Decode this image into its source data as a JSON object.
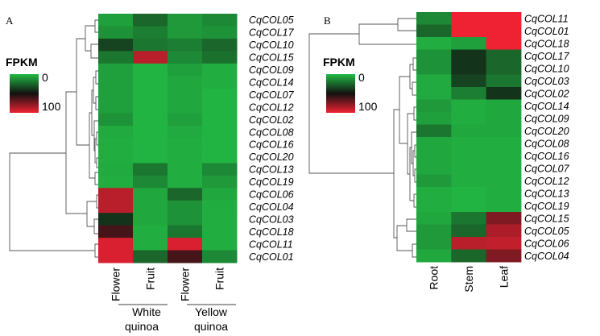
{
  "chart_data": [
    {
      "type": "heatmap",
      "panel_label": "A",
      "legend": {
        "title": "FPKM",
        "ticks": [
          "0",
          "100"
        ],
        "colors": [
          "#22bb44",
          "#111111",
          "#ee2233"
        ],
        "range": [
          0,
          100
        ]
      },
      "columns": [
        "Flower",
        "Fruit",
        "Flower",
        "Fruit"
      ],
      "column_groups": [
        {
          "name_line1": "White",
          "name_line2": "quinoa",
          "columns": [
            "Flower",
            "Fruit"
          ]
        },
        {
          "name_line1": "Yellow",
          "name_line2": "quinoa",
          "columns": [
            "Flower",
            "Fruit"
          ]
        }
      ],
      "rows": [
        "CqCOL05",
        "CqCOL17",
        "CqCOL10",
        "CqCOL15",
        "CqCOL09",
        "CqCOL14",
        "CqCOL07",
        "CqCOL12",
        "CqCOL02",
        "CqCOL08",
        "CqCOL16",
        "CqCOL20",
        "CqCOL13",
        "CqCOL19",
        "CqCOL06",
        "CqCOL04",
        "CqCOL03",
        "CqCOL18",
        "CqCOL11",
        "CqCOL01"
      ],
      "values": [
        [
          8,
          25,
          10,
          15
        ],
        [
          12,
          18,
          10,
          12
        ],
        [
          35,
          20,
          18,
          25
        ],
        [
          20,
          88,
          15,
          22
        ],
        [
          8,
          2,
          8,
          4
        ],
        [
          8,
          2,
          6,
          4
        ],
        [
          8,
          2,
          6,
          2
        ],
        [
          8,
          2,
          6,
          2
        ],
        [
          12,
          2,
          8,
          2
        ],
        [
          5,
          2,
          5,
          2
        ],
        [
          4,
          2,
          4,
          2
        ],
        [
          4,
          2,
          4,
          2
        ],
        [
          5,
          20,
          4,
          15
        ],
        [
          4,
          15,
          4,
          10
        ],
        [
          88,
          6,
          25,
          6
        ],
        [
          88,
          6,
          12,
          4
        ],
        [
          40,
          6,
          12,
          4
        ],
        [
          62,
          4,
          20,
          4
        ],
        [
          95,
          4,
          95,
          4
        ],
        [
          95,
          25,
          62,
          15
        ]
      ]
    },
    {
      "type": "heatmap",
      "panel_label": "B",
      "legend": {
        "title": "FPKM",
        "ticks": [
          "0",
          "100"
        ],
        "colors": [
          "#22bb44",
          "#111111",
          "#ee2233"
        ],
        "range": [
          0,
          100
        ]
      },
      "columns": [
        "Root",
        "Stem",
        "Leaf"
      ],
      "rows": [
        "CqCOL11",
        "CqCOL01",
        "CqCOL18",
        "CqCOL17",
        "CqCOL10",
        "CqCOL03",
        "CqCOL02",
        "CqCOL14",
        "CqCOL09",
        "CqCOL20",
        "CqCOL08",
        "CqCOL16",
        "CqCOL07",
        "CqCOL12",
        "CqCOL13",
        "CqCOL19",
        "CqCOL15",
        "CqCOL05",
        "CqCOL06",
        "CqCOL04"
      ],
      "values": [
        [
          15,
          100,
          100
        ],
        [
          25,
          100,
          100
        ],
        [
          4,
          8,
          100
        ],
        [
          12,
          40,
          25
        ],
        [
          12,
          40,
          25
        ],
        [
          5,
          35,
          20
        ],
        [
          5,
          18,
          40
        ],
        [
          10,
          4,
          6
        ],
        [
          8,
          4,
          6
        ],
        [
          20,
          6,
          6
        ],
        [
          6,
          4,
          4
        ],
        [
          6,
          4,
          4
        ],
        [
          6,
          4,
          4
        ],
        [
          10,
          4,
          4
        ],
        [
          4,
          2,
          4
        ],
        [
          4,
          2,
          4
        ],
        [
          6,
          20,
          75
        ],
        [
          10,
          25,
          85
        ],
        [
          10,
          88,
          90
        ],
        [
          6,
          25,
          75
        ]
      ]
    }
  ]
}
